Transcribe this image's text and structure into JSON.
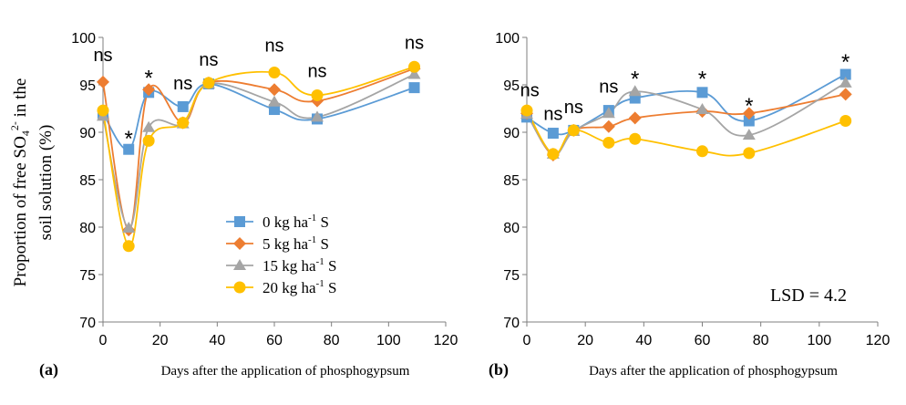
{
  "figure": {
    "ylabel_line1": "Proportion of free SO",
    "ylabel_sub": "4",
    "ylabel_sup": "2-",
    "ylabel_tail": " in the",
    "ylabel_line2": "soil solution (%)"
  },
  "chart_data": [
    {
      "type": "line",
      "panel_label": "(a)",
      "xlabel": "Days after the application of phosphogypsum",
      "ylabel": "Proportion of free SO4 2- in the soil solution (%)",
      "xlim": [
        0,
        120
      ],
      "ylim": [
        70,
        100
      ],
      "xticks": [
        "0",
        "20",
        "40",
        "60",
        "80",
        "100",
        "120"
      ],
      "yticks": [
        "70",
        "75",
        "80",
        "85",
        "90",
        "95",
        "100"
      ],
      "grid": false,
      "legend_position": "bottom-center",
      "x": [
        0,
        9,
        16,
        28,
        37,
        60,
        75,
        109
      ],
      "series": [
        {
          "name": "0 kg ha-1 S",
          "label_main": "0 kg ha",
          "label_sup": "-1",
          "label_tail": " S",
          "color": "#5B9BD5",
          "marker": "square",
          "values": [
            92.0,
            88.2,
            94.2,
            92.7,
            95.1,
            92.4,
            91.4,
            94.7
          ]
        },
        {
          "name": "5 kg ha-1 S",
          "label_main": "5 kg ha",
          "label_sup": "-1",
          "label_tail": " S",
          "color": "#ED7D31",
          "marker": "diamond",
          "values": [
            95.3,
            79.7,
            94.5,
            91.0,
            95.2,
            94.5,
            93.3,
            96.7
          ]
        },
        {
          "name": "15 kg ha-1 S",
          "label_main": "15 kg ha",
          "label_sup": "-1",
          "label_tail": " S",
          "color": "#A5A5A5",
          "marker": "triangle",
          "values": [
            91.7,
            79.9,
            90.5,
            90.9,
            95.1,
            93.2,
            91.6,
            96.1
          ]
        },
        {
          "name": "20 kg ha-1 S",
          "label_main": "20 kg ha",
          "label_sup": "-1",
          "label_tail": " S",
          "color": "#FFC000",
          "marker": "circle",
          "values": [
            92.3,
            78.0,
            89.1,
            91.0,
            95.2,
            96.3,
            93.9,
            96.9
          ]
        }
      ],
      "annotations": [
        {
          "x": 0,
          "y": 97.5,
          "text": "ns"
        },
        {
          "x": 9,
          "y": 89.5,
          "text": "*"
        },
        {
          "x": 16,
          "y": 95.9,
          "text": "*"
        },
        {
          "x": 28,
          "y": 94.5,
          "text": "ns"
        },
        {
          "x": 37,
          "y": 97.0,
          "text": "ns"
        },
        {
          "x": 60,
          "y": 98.5,
          "text": "ns"
        },
        {
          "x": 75,
          "y": 95.8,
          "text": "ns"
        },
        {
          "x": 109,
          "y": 98.8,
          "text": "ns"
        }
      ]
    },
    {
      "type": "line",
      "panel_label": "(b)",
      "xlabel": "Days after the application of phosphogypsum",
      "xlim": [
        0,
        120
      ],
      "ylim": [
        70,
        100
      ],
      "xticks": [
        "0",
        "20",
        "40",
        "60",
        "80",
        "100",
        "120"
      ],
      "yticks": [
        "70",
        "75",
        "80",
        "85",
        "90",
        "95",
        "100"
      ],
      "grid": false,
      "lsd_text": "LSD = 4.2",
      "x": [
        0,
        9,
        16,
        28,
        37,
        60,
        76,
        109
      ],
      "series": [
        {
          "name": "0 kg ha-1 S",
          "color": "#5B9BD5",
          "marker": "square",
          "values": [
            91.6,
            89.9,
            90.2,
            92.3,
            93.6,
            94.2,
            91.2,
            96.1
          ]
        },
        {
          "name": "5 kg ha-1 S",
          "color": "#ED7D31",
          "marker": "diamond",
          "values": [
            92.0,
            87.6,
            90.2,
            90.6,
            91.5,
            92.2,
            92.0,
            94.0
          ]
        },
        {
          "name": "15 kg ha-1 S",
          "color": "#A5A5A5",
          "marker": "triangle",
          "values": [
            91.9,
            87.7,
            90.1,
            92.0,
            94.3,
            92.4,
            89.7,
            95.2
          ]
        },
        {
          "name": "20 kg ha-1 S",
          "color": "#FFC000",
          "marker": "circle",
          "values": [
            92.3,
            87.7,
            90.2,
            88.9,
            89.3,
            88.0,
            87.8,
            91.2
          ]
        }
      ],
      "annotations": [
        {
          "x": 1,
          "y": 93.8,
          "text": "ns"
        },
        {
          "x": 9,
          "y": 91.3,
          "text": "ns"
        },
        {
          "x": 16,
          "y": 92.0,
          "text": "ns"
        },
        {
          "x": 28,
          "y": 94.2,
          "text": "ns"
        },
        {
          "x": 37,
          "y": 95.8,
          "text": "*"
        },
        {
          "x": 60,
          "y": 95.8,
          "text": "*"
        },
        {
          "x": 76,
          "y": 93.0,
          "text": "*"
        },
        {
          "x": 109,
          "y": 97.6,
          "text": "*"
        }
      ]
    }
  ]
}
